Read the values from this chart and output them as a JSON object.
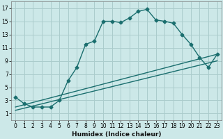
{
  "background_color": "#cce8e8",
  "grid_color": "#aacccc",
  "line_color": "#1a6e6e",
  "xlabel": "Humidex (Indice chaleur)",
  "xlim": [
    -0.5,
    23.5
  ],
  "ylim": [
    0,
    18
  ],
  "xticks": [
    0,
    1,
    2,
    3,
    4,
    5,
    6,
    7,
    8,
    9,
    10,
    11,
    12,
    13,
    14,
    15,
    16,
    17,
    18,
    19,
    20,
    21,
    22,
    23
  ],
  "yticks": [
    1,
    3,
    5,
    7,
    9,
    11,
    13,
    15,
    17
  ],
  "line1_x": [
    0,
    1,
    2,
    3,
    4,
    5,
    6,
    7,
    8,
    9,
    10,
    11,
    12,
    13,
    14,
    15,
    16,
    17,
    18,
    19,
    20,
    21,
    22,
    23
  ],
  "line1_y": [
    3.5,
    2.5,
    2.0,
    2.0,
    2.0,
    3.0,
    6.0,
    8.0,
    11.5,
    12.0,
    15.0,
    15.0,
    14.8,
    15.5,
    16.5,
    16.8,
    15.2,
    15.0,
    14.7,
    13.0,
    11.5,
    9.5,
    8.0,
    10.0
  ],
  "line2_x": [
    0,
    23
  ],
  "line2_y": [
    1.5,
    9.0
  ],
  "line3_x": [
    0,
    23
  ],
  "line3_y": [
    2.0,
    10.0
  ],
  "marker": "D",
  "marker_size": 2.5,
  "linewidth": 1.0,
  "tick_fontsize": 5.5,
  "xlabel_fontsize": 6.5
}
